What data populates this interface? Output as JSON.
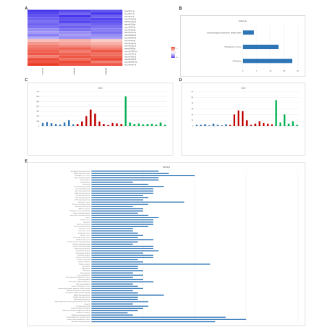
{
  "panels": {
    "a": "A",
    "b": "B",
    "c": "C",
    "d": "D",
    "e": "E"
  },
  "heatmap": {
    "columns": [
      "GSE34",
      "GSE36",
      "GSE38"
    ],
    "legend_max": "1.5",
    "legend_mid": "0",
    "legend_min": "-1.5",
    "rows": [
      {
        "label": "hsa-miR-1-2p",
        "vals": [
          -1.4,
          -1.3,
          -1.2
        ]
      },
      {
        "label": "hsa-miR-7-5p",
        "vals": [
          -1.3,
          -1.1,
          -1.4
        ]
      },
      {
        "label": "hsa-miR-9-5p",
        "vals": [
          -1.2,
          -1.4,
          -1.1
        ]
      },
      {
        "label": "hsa-miR-10a-5p",
        "vals": [
          -1.1,
          -1.2,
          -1.3
        ]
      },
      {
        "label": "hsa-miR-15a-5p",
        "vals": [
          -1.0,
          -1.3,
          -1.2
        ]
      },
      {
        "label": "hsa-miR-16-5p",
        "vals": [
          -1.1,
          -1.0,
          -1.1
        ]
      },
      {
        "label": "hsa-miR-21-5p",
        "vals": [
          -1.0,
          -1.1,
          -1.0
        ]
      },
      {
        "label": "hsa-miR-25-3p",
        "vals": [
          -0.8,
          -1.0,
          -0.9
        ]
      },
      {
        "label": "hsa-miR-27a-3p",
        "vals": [
          -0.7,
          -0.8,
          -1.0
        ]
      },
      {
        "label": "hsa-miR-29b-3p",
        "vals": [
          -0.9,
          -0.7,
          -0.8
        ]
      },
      {
        "label": "hsa-miR-30c-5p",
        "vals": [
          -0.6,
          -0.8,
          -0.7
        ]
      },
      {
        "label": "hsa-miR-31-5p",
        "vals": [
          0.5,
          0.6,
          0.4
        ]
      },
      {
        "label": "hsa-miR-34a-5p",
        "vals": [
          0.8,
          0.7,
          0.6
        ]
      },
      {
        "label": "hsa-miR-92a-3p",
        "vals": [
          1.0,
          0.9,
          0.8
        ]
      },
      {
        "label": "hsa-miR-96-5p",
        "vals": [
          1.1,
          1.2,
          1.0
        ]
      },
      {
        "label": "hsa-miR-125b-5p",
        "vals": [
          1.2,
          1.0,
          1.3
        ]
      },
      {
        "label": "hsa-miR-143-3p",
        "vals": [
          1.3,
          1.2,
          1.1
        ]
      },
      {
        "label": "hsa-miR-145-5p",
        "vals": [
          1.0,
          1.3,
          1.2
        ]
      },
      {
        "label": "hsa-miR-155-5p",
        "vals": [
          1.4,
          1.1,
          1.4
        ]
      },
      {
        "label": "hsa-miR-200c-3p",
        "vals": [
          1.3,
          1.4,
          1.0
        ]
      },
      {
        "label": "hsa-miR-221-3p",
        "vals": [
          1.5,
          1.3,
          1.3
        ]
      }
    ]
  },
  "chart_data": [
    {
      "panel": "B",
      "type": "bar",
      "orientation": "horizontal",
      "title": "KEGG",
      "categories": [
        "Glycosaminoglycan biosynthesis - keratan sulfate",
        "Proteoglycans in cancer",
        "Endocytosis"
      ],
      "values": [
        4,
        13,
        18
      ],
      "xlim": [
        0,
        20
      ],
      "xticks": [
        "0",
        "5",
        "10",
        "15",
        "20"
      ],
      "color": "#2e75b6"
    },
    {
      "panel": "C",
      "type": "bar",
      "title": "GO",
      "ylim": [
        0,
        700
      ],
      "yticks": [
        "0",
        "100",
        "200",
        "300",
        "400",
        "500",
        "600",
        "700"
      ],
      "values": [
        60,
        80,
        55,
        40,
        30,
        70,
        120,
        35,
        40,
        90,
        200,
        330,
        250,
        90,
        40,
        20,
        60,
        50,
        40,
        600,
        70,
        40,
        50,
        35,
        40,
        45,
        30,
        70,
        25
      ],
      "colors": [
        "#2e75b6",
        "#2e75b6",
        "#2e75b6",
        "#2e75b6",
        "#2e75b6",
        "#2e75b6",
        "#2e75b6",
        "#2e75b6",
        "#c00000",
        "#c00000",
        "#c00000",
        "#c00000",
        "#c00000",
        "#c00000",
        "#c00000",
        "#c00000",
        "#c00000",
        "#c00000",
        "#c00000",
        "#00b050",
        "#00b050",
        "#00b050",
        "#00b050",
        "#00b050",
        "#00b050",
        "#00b050",
        "#00b050",
        "#00b050",
        "#00b050"
      ]
    },
    {
      "panel": "D",
      "type": "bar",
      "title": "GO",
      "ylim": [
        0,
        60
      ],
      "yticks": [
        "0",
        "10",
        "20",
        "30",
        "40",
        "50",
        "60"
      ],
      "values": [
        2,
        2,
        3,
        1,
        4,
        2,
        1,
        3,
        2,
        20,
        27,
        26,
        10,
        2,
        4,
        8,
        5,
        4,
        3,
        45,
        6,
        20,
        4,
        8,
        2
      ],
      "colors": [
        "#2e75b6",
        "#2e75b6",
        "#2e75b6",
        "#2e75b6",
        "#2e75b6",
        "#2e75b6",
        "#2e75b6",
        "#2e75b6",
        "#c00000",
        "#c00000",
        "#c00000",
        "#c00000",
        "#c00000",
        "#c00000",
        "#c00000",
        "#c00000",
        "#c00000",
        "#c00000",
        "#c00000",
        "#00b050",
        "#00b050",
        "#00b050",
        "#00b050",
        "#00b050",
        "#00b050"
      ]
    },
    {
      "panel": "E",
      "type": "bar",
      "orientation": "horizontal",
      "title": "KEGG",
      "xlim": [
        0,
        40
      ],
      "xticks": [
        "0",
        "10",
        "20",
        "30",
        "40"
      ],
      "color": "#2e75b6",
      "categories": [
        "Sphingolipid signaling pathway",
        "MAPK signaling pathway",
        "Proteoglycans in cancer",
        "Hippo signaling pathway",
        "Axon guidance",
        "Focal adhesion",
        "Endocytosis",
        "Insulin signaling pathway",
        "Wnt signaling pathway",
        "Rap1 signaling pathway",
        "cAMP signaling pathway",
        "Ras signaling pathway",
        "FoxO signaling pathway",
        "mTOR signaling pathway",
        "Pathways in cancer",
        "TGF-beta signaling pathway",
        "ErbB signaling pathway",
        "Adherens junction",
        "Regulation of actin cytoskeleton",
        "Oxytocin signaling pathway",
        "Neurotrophin signaling pathway",
        "Glioma",
        "Prostate cancer",
        "Melanoma",
        "Renal cell carcinoma",
        "Chronic myeloid leukemia",
        "Colorectal cancer",
        "Pancreatic cancer",
        "Endometrial cancer",
        "Bladder cancer",
        "Non-small cell lung cancer",
        "Small cell lung cancer",
        "Thyroid hormone signaling pathway",
        "Estrogen signaling pathway",
        "Prolactin signaling pathway",
        "GnRH signaling pathway",
        "Dopaminergic synapse",
        "Glutamatergic synapse",
        "Cholinergic synapse",
        "Long-term potentiation",
        "Circadian entrainment",
        "Morphine addiction",
        "Platelet activation",
        "Gap junction",
        "Tight junction",
        "Hepatitis B",
        "HTLV-I infection",
        "Viral carcinogenesis",
        "Transcriptional misregulation in cancer",
        "Lysine degradation",
        "Mucin type O-glycan biosynthesis",
        "Fatty acid metabolism",
        "Choline metabolism in cancer",
        "Inflammatory mediator regulation of TRP channels",
        "Aldosterone synthesis and secretion",
        "Retrograde endocannabinoid signaling",
        "AMPK signaling pathway",
        "PI3K-Akt signaling pathway",
        "Apelin signaling pathway",
        "Signaling pathways regulating pluripotency of stem cells",
        "Cell cycle",
        "p53 signaling pathway",
        "Ubiquitin mediated proteolysis",
        "Protein processing in endoplasmic reticulum",
        "Endocrine resistance",
        "Hedgehog signaling pathway",
        "Phosphatidylinositol signaling system",
        "Central carbon metabolism in cancer",
        "Chemokine signaling pathway"
      ],
      "values": [
        13,
        15,
        20,
        13,
        13,
        8,
        11,
        14,
        12,
        12,
        12,
        10,
        11,
        10,
        18,
        11,
        8,
        10,
        10,
        9,
        11,
        13,
        12,
        12,
        12,
        11,
        8,
        8,
        9,
        10,
        9,
        12,
        9,
        8,
        12,
        12,
        13,
        10,
        12,
        12,
        9,
        10,
        23,
        9,
        9,
        10,
        8,
        10,
        8,
        10,
        12,
        8,
        9,
        10,
        8,
        9,
        14,
        9,
        9,
        11,
        8,
        11,
        10,
        9,
        7,
        8,
        26,
        30,
        24
      ]
    }
  ]
}
